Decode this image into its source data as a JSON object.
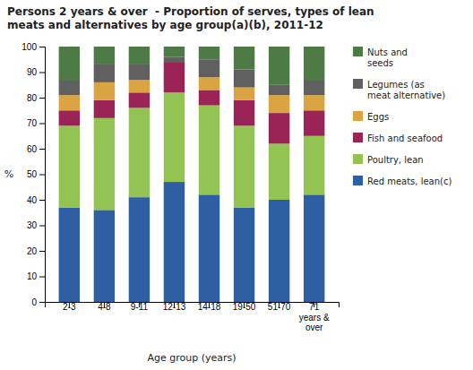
{
  "chart_data": {
    "type": "bar",
    "stacked": true,
    "title": "Persons 2 years & over  - Proportion of serves, types of lean\nmeats and alternatives by age group(a)(b), 2011-12",
    "x_label": "Age group (years)",
    "y_label": "%",
    "categories": [
      "2-3",
      "4-8",
      "9-11",
      "12-13",
      "14-18",
      "19-50",
      "51-70",
      "71\nyears &\nover"
    ],
    "series": [
      {
        "name": "Red meats, lean(c)",
        "color": "#2e5fa3",
        "values": [
          37,
          36,
          41,
          47,
          42,
          37,
          40,
          42
        ]
      },
      {
        "name": "Poultry, lean",
        "color": "#92c353",
        "values": [
          32,
          36,
          35,
          35,
          35,
          32,
          22,
          23
        ]
      },
      {
        "name": "Fish and seafood",
        "color": "#9b2457",
        "values": [
          6,
          7,
          6,
          12,
          6,
          10,
          12,
          10
        ]
      },
      {
        "name": "Eggs",
        "color": "#d9a441",
        "values": [
          6,
          7,
          5,
          0,
          5,
          5,
          7,
          6
        ]
      },
      {
        "name": "Legumes (as\nmeat alternative)",
        "color": "#606060",
        "values": [
          6,
          7,
          6,
          2,
          7,
          7,
          4,
          6
        ]
      },
      {
        "name": "Nuts and\nseeds",
        "color": "#4e7b45",
        "values": [
          13,
          7,
          7,
          4,
          5,
          9,
          15,
          13
        ]
      }
    ],
    "ylim": [
      0,
      100
    ],
    "yticks": [
      0,
      10,
      20,
      30,
      40,
      50,
      60,
      70,
      80,
      90,
      100
    ],
    "grid": false,
    "legend": "right"
  }
}
